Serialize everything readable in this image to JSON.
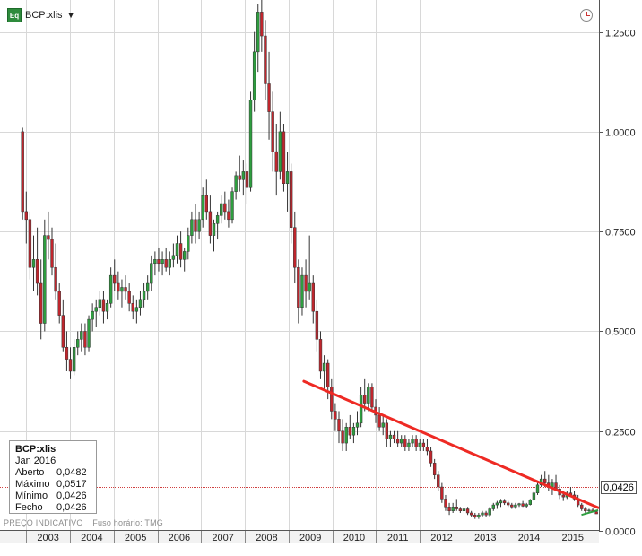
{
  "header": {
    "icon_text": "Eq",
    "ticker": "BCP:xlis",
    "caret": "▼"
  },
  "tooltip": {
    "title": "BCP:xlis",
    "date": "Jan 2016",
    "rows": [
      {
        "label": "Aberto",
        "value": "0,0482"
      },
      {
        "label": "Máximo",
        "value": "0,0517"
      },
      {
        "label": "Mínimo",
        "value": "0,0426"
      },
      {
        "label": "Fecho",
        "value": "0,0426"
      }
    ]
  },
  "footer": {
    "price_label": "PREÇO INDICATIVO",
    "timezone": "Fuso horário: TMG"
  },
  "last_price_label": "0,0426",
  "colors": {
    "up": "#2e9e3f",
    "down": "#c0262d",
    "trendline": "#ee2a24",
    "last_price_line": "#d04040",
    "grid": "#d8d8d8"
  },
  "chart_data": {
    "type": "candlestick",
    "interval": "monthly",
    "title": "",
    "xlabel": "",
    "ylabel": "",
    "x_ticks": [
      "2003",
      "2004",
      "2005",
      "2006",
      "2007",
      "2008",
      "2009",
      "2010",
      "2011",
      "2012",
      "2013",
      "2014",
      "2015"
    ],
    "y_ticks": [
      "0,0000",
      "0,2500",
      "0,5000",
      "0,7500",
      "1,0000",
      "1,2500"
    ],
    "ylim": [
      0,
      1.33
    ],
    "xlim": [
      2002.4,
      2016.1
    ],
    "grid": true,
    "last_price": 0.0426,
    "trendline": [
      {
        "x": 2009.35,
        "y": 0.375
      },
      {
        "x": 2016.08,
        "y": 0.058
      }
    ],
    "trendline_small": [
      {
        "x": 2015.7,
        "y": 0.04
      },
      {
        "x": 2016.08,
        "y": 0.052
      }
    ],
    "series": [
      {
        "values": [
          [
            1.0,
            1.01,
            0.78,
            0.8
          ],
          [
            0.8,
            0.85,
            0.72,
            0.78
          ],
          [
            0.78,
            0.8,
            0.63,
            0.66
          ],
          [
            0.66,
            0.74,
            0.6,
            0.68
          ],
          [
            0.68,
            0.76,
            0.59,
            0.62
          ],
          [
            0.62,
            0.68,
            0.48,
            0.52
          ],
          [
            0.52,
            0.78,
            0.5,
            0.74
          ],
          [
            0.74,
            0.8,
            0.68,
            0.73
          ],
          [
            0.73,
            0.76,
            0.64,
            0.66
          ],
          [
            0.66,
            0.72,
            0.58,
            0.6
          ],
          [
            0.6,
            0.62,
            0.52,
            0.54
          ],
          [
            0.54,
            0.58,
            0.45,
            0.46
          ],
          [
            0.46,
            0.5,
            0.4,
            0.43
          ],
          [
            0.43,
            0.46,
            0.38,
            0.4
          ],
          [
            0.4,
            0.48,
            0.39,
            0.46
          ],
          [
            0.46,
            0.5,
            0.44,
            0.48
          ],
          [
            0.48,
            0.52,
            0.45,
            0.5
          ],
          [
            0.5,
            0.52,
            0.44,
            0.46
          ],
          [
            0.46,
            0.54,
            0.45,
            0.53
          ],
          [
            0.53,
            0.57,
            0.5,
            0.55
          ],
          [
            0.55,
            0.58,
            0.51,
            0.56
          ],
          [
            0.56,
            0.6,
            0.54,
            0.58
          ],
          [
            0.58,
            0.6,
            0.52,
            0.55
          ],
          [
            0.55,
            0.58,
            0.53,
            0.57
          ],
          [
            0.57,
            0.66,
            0.56,
            0.64
          ],
          [
            0.64,
            0.68,
            0.6,
            0.62
          ],
          [
            0.62,
            0.65,
            0.58,
            0.6
          ],
          [
            0.6,
            0.63,
            0.56,
            0.61
          ],
          [
            0.61,
            0.64,
            0.58,
            0.6
          ],
          [
            0.6,
            0.62,
            0.55,
            0.57
          ],
          [
            0.57,
            0.59,
            0.53,
            0.55
          ],
          [
            0.55,
            0.58,
            0.52,
            0.56
          ],
          [
            0.56,
            0.6,
            0.54,
            0.58
          ],
          [
            0.58,
            0.62,
            0.56,
            0.6
          ],
          [
            0.6,
            0.64,
            0.58,
            0.62
          ],
          [
            0.62,
            0.69,
            0.6,
            0.67
          ],
          [
            0.67,
            0.7,
            0.64,
            0.68
          ],
          [
            0.68,
            0.71,
            0.65,
            0.67
          ],
          [
            0.67,
            0.7,
            0.64,
            0.68
          ],
          [
            0.68,
            0.71,
            0.65,
            0.66
          ],
          [
            0.66,
            0.7,
            0.64,
            0.68
          ],
          [
            0.68,
            0.72,
            0.66,
            0.69
          ],
          [
            0.69,
            0.74,
            0.67,
            0.72
          ],
          [
            0.72,
            0.75,
            0.66,
            0.68
          ],
          [
            0.68,
            0.71,
            0.65,
            0.7
          ],
          [
            0.7,
            0.76,
            0.68,
            0.74
          ],
          [
            0.74,
            0.8,
            0.72,
            0.78
          ],
          [
            0.78,
            0.82,
            0.72,
            0.75
          ],
          [
            0.75,
            0.8,
            0.73,
            0.78
          ],
          [
            0.78,
            0.86,
            0.76,
            0.84
          ],
          [
            0.84,
            0.88,
            0.78,
            0.8
          ],
          [
            0.8,
            0.84,
            0.72,
            0.74
          ],
          [
            0.74,
            0.78,
            0.7,
            0.77
          ],
          [
            0.77,
            0.8,
            0.73,
            0.79
          ],
          [
            0.79,
            0.84,
            0.77,
            0.82
          ],
          [
            0.82,
            0.85,
            0.78,
            0.8
          ],
          [
            0.8,
            0.83,
            0.76,
            0.78
          ],
          [
            0.78,
            0.86,
            0.77,
            0.85
          ],
          [
            0.85,
            0.9,
            0.83,
            0.89
          ],
          [
            0.89,
            0.94,
            0.85,
            0.88
          ],
          [
            0.88,
            0.93,
            0.84,
            0.9
          ],
          [
            0.9,
            0.92,
            0.82,
            0.86
          ],
          [
            0.86,
            1.1,
            0.85,
            1.08
          ],
          [
            1.08,
            1.25,
            1.05,
            1.2
          ],
          [
            1.2,
            1.32,
            1.15,
            1.3
          ],
          [
            1.3,
            1.36,
            1.2,
            1.24
          ],
          [
            1.24,
            1.28,
            1.08,
            1.12
          ],
          [
            1.12,
            1.2,
            0.98,
            1.05
          ],
          [
            1.05,
            1.1,
            0.9,
            0.95
          ],
          [
            0.95,
            1.02,
            0.84,
            0.9
          ],
          [
            0.9,
            1.05,
            0.88,
            1.0
          ],
          [
            1.0,
            1.02,
            0.85,
            0.87
          ],
          [
            0.87,
            0.95,
            0.8,
            0.9
          ],
          [
            0.9,
            0.92,
            0.72,
            0.76
          ],
          [
            0.76,
            0.8,
            0.62,
            0.66
          ],
          [
            0.66,
            0.68,
            0.52,
            0.56
          ],
          [
            0.56,
            0.66,
            0.54,
            0.64
          ],
          [
            0.64,
            0.68,
            0.56,
            0.6
          ],
          [
            0.6,
            0.74,
            0.58,
            0.62
          ],
          [
            0.62,
            0.64,
            0.52,
            0.55
          ],
          [
            0.55,
            0.58,
            0.45,
            0.48
          ],
          [
            0.48,
            0.5,
            0.38,
            0.4
          ],
          [
            0.4,
            0.44,
            0.35,
            0.42
          ],
          [
            0.42,
            0.43,
            0.33,
            0.36
          ],
          [
            0.36,
            0.38,
            0.28,
            0.3
          ],
          [
            0.3,
            0.32,
            0.25,
            0.28
          ],
          [
            0.28,
            0.3,
            0.22,
            0.25
          ],
          [
            0.25,
            0.28,
            0.2,
            0.22
          ],
          [
            0.22,
            0.27,
            0.2,
            0.26
          ],
          [
            0.26,
            0.29,
            0.23,
            0.24
          ],
          [
            0.24,
            0.27,
            0.22,
            0.26
          ],
          [
            0.26,
            0.3,
            0.24,
            0.27
          ],
          [
            0.27,
            0.36,
            0.26,
            0.34
          ],
          [
            0.34,
            0.38,
            0.3,
            0.32
          ],
          [
            0.32,
            0.37,
            0.3,
            0.36
          ],
          [
            0.36,
            0.37,
            0.3,
            0.31
          ],
          [
            0.31,
            0.33,
            0.27,
            0.29
          ],
          [
            0.29,
            0.31,
            0.25,
            0.26
          ],
          [
            0.26,
            0.29,
            0.24,
            0.27
          ],
          [
            0.27,
            0.28,
            0.21,
            0.23
          ],
          [
            0.23,
            0.25,
            0.21,
            0.24
          ],
          [
            0.24,
            0.25,
            0.22,
            0.23
          ],
          [
            0.23,
            0.25,
            0.21,
            0.22
          ],
          [
            0.22,
            0.24,
            0.21,
            0.23
          ],
          [
            0.23,
            0.24,
            0.2,
            0.21
          ],
          [
            0.21,
            0.23,
            0.2,
            0.22
          ],
          [
            0.22,
            0.24,
            0.21,
            0.23
          ],
          [
            0.23,
            0.24,
            0.2,
            0.21
          ],
          [
            0.21,
            0.23,
            0.2,
            0.22
          ],
          [
            0.22,
            0.23,
            0.2,
            0.21
          ],
          [
            0.21,
            0.23,
            0.19,
            0.2
          ],
          [
            0.2,
            0.21,
            0.16,
            0.17
          ],
          [
            0.17,
            0.18,
            0.13,
            0.14
          ],
          [
            0.14,
            0.15,
            0.1,
            0.11
          ],
          [
            0.11,
            0.12,
            0.07,
            0.08
          ],
          [
            0.08,
            0.09,
            0.05,
            0.06
          ],
          [
            0.06,
            0.07,
            0.04,
            0.05
          ],
          [
            0.05,
            0.07,
            0.045,
            0.06
          ],
          [
            0.06,
            0.08,
            0.05,
            0.055
          ],
          [
            0.055,
            0.06,
            0.045,
            0.05
          ],
          [
            0.05,
            0.06,
            0.045,
            0.055
          ],
          [
            0.055,
            0.06,
            0.04,
            0.045
          ],
          [
            0.045,
            0.05,
            0.035,
            0.04
          ],
          [
            0.04,
            0.045,
            0.03,
            0.035
          ],
          [
            0.035,
            0.045,
            0.03,
            0.04
          ],
          [
            0.04,
            0.05,
            0.035,
            0.045
          ],
          [
            0.045,
            0.05,
            0.035,
            0.04
          ],
          [
            0.04,
            0.06,
            0.035,
            0.055
          ],
          [
            0.055,
            0.07,
            0.05,
            0.065
          ],
          [
            0.065,
            0.075,
            0.055,
            0.07
          ],
          [
            0.07,
            0.08,
            0.06,
            0.075
          ],
          [
            0.075,
            0.08,
            0.065,
            0.07
          ],
          [
            0.07,
            0.075,
            0.06,
            0.065
          ],
          [
            0.065,
            0.07,
            0.055,
            0.06
          ],
          [
            0.06,
            0.07,
            0.055,
            0.065
          ],
          [
            0.065,
            0.07,
            0.06,
            0.068
          ],
          [
            0.068,
            0.075,
            0.06,
            0.062
          ],
          [
            0.062,
            0.07,
            0.058,
            0.066
          ],
          [
            0.066,
            0.08,
            0.064,
            0.078
          ],
          [
            0.078,
            0.1,
            0.075,
            0.095
          ],
          [
            0.095,
            0.12,
            0.09,
            0.115
          ],
          [
            0.115,
            0.14,
            0.11,
            0.13
          ],
          [
            0.13,
            0.15,
            0.11,
            0.12
          ],
          [
            0.12,
            0.14,
            0.1,
            0.11
          ],
          [
            0.11,
            0.13,
            0.09,
            0.12
          ],
          [
            0.12,
            0.14,
            0.1,
            0.105
          ],
          [
            0.105,
            0.115,
            0.08,
            0.09
          ],
          [
            0.09,
            0.1,
            0.075,
            0.085
          ],
          [
            0.085,
            0.1,
            0.08,
            0.095
          ],
          [
            0.095,
            0.11,
            0.085,
            0.09
          ],
          [
            0.09,
            0.1,
            0.075,
            0.08
          ],
          [
            0.08,
            0.09,
            0.06,
            0.065
          ],
          [
            0.065,
            0.07,
            0.05,
            0.055
          ],
          [
            0.055,
            0.06,
            0.045,
            0.05
          ],
          [
            0.05,
            0.055,
            0.045,
            0.052
          ],
          [
            0.052,
            0.058,
            0.046,
            0.048
          ],
          [
            0.048,
            0.052,
            0.0426,
            0.0426
          ]
        ]
      }
    ]
  }
}
